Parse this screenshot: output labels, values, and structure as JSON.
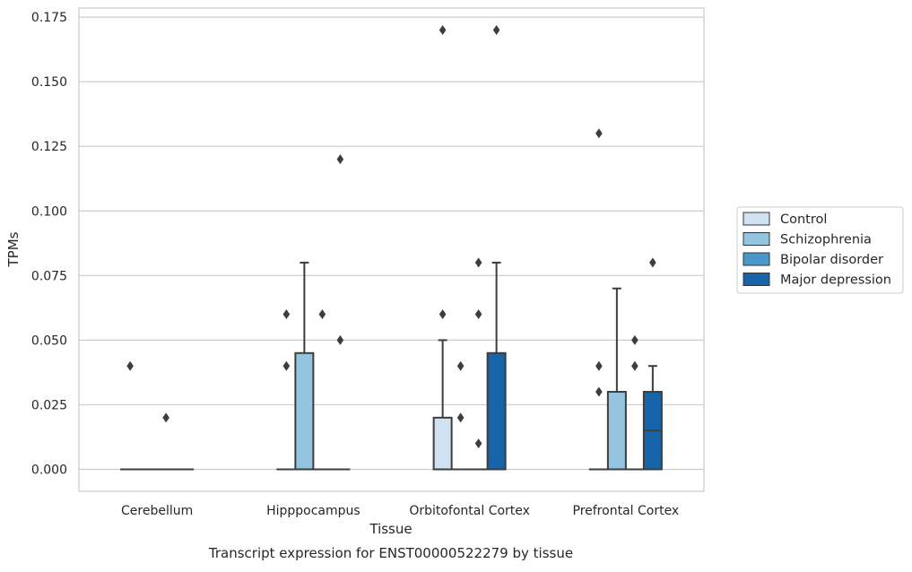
{
  "chart_data": {
    "type": "box",
    "title": "Transcript expression for ENST00000522279 by tissue",
    "xlabel": "Tissue",
    "ylabel": "TPMs",
    "ylim": [
      -0.0085,
      0.1785
    ],
    "yticks": [
      "0.000",
      "0.025",
      "0.050",
      "0.075",
      "0.100",
      "0.125",
      "0.150",
      "0.175"
    ],
    "ytick_values": [
      0,
      0.025,
      0.05,
      0.075,
      0.1,
      0.125,
      0.15,
      0.175
    ],
    "grid": true,
    "legend_position": "right",
    "categories": [
      "Cerebellum",
      "Hipppocampus",
      "Orbitofontal Cortex",
      "Prefrontal Cortex"
    ],
    "series": [
      {
        "name": "Control",
        "color": "#d0e1f2",
        "boxes": [
          {
            "q1": 0,
            "median": 0,
            "q3": 0,
            "whisker_low": 0,
            "whisker_high": 0,
            "outliers": [
              0.04
            ]
          },
          {
            "q1": 0,
            "median": 0,
            "q3": 0,
            "whisker_low": 0,
            "whisker_high": 0,
            "outliers": [
              0.04,
              0.06
            ]
          },
          {
            "q1": 0,
            "median": 0,
            "q3": 0.02,
            "whisker_low": 0,
            "whisker_high": 0.05,
            "outliers": [
              0.06,
              0.17
            ]
          },
          {
            "q1": 0,
            "median": 0,
            "q3": 0,
            "whisker_low": 0,
            "whisker_high": 0,
            "outliers": [
              0.03,
              0.04,
              0.13
            ]
          }
        ]
      },
      {
        "name": "Schizophrenia",
        "color": "#94c4df",
        "boxes": [
          {
            "q1": 0,
            "median": 0,
            "q3": 0,
            "whisker_low": 0,
            "whisker_high": 0,
            "outliers": []
          },
          {
            "q1": 0,
            "median": 0,
            "q3": 0.045,
            "whisker_low": 0,
            "whisker_high": 0.08,
            "outliers": []
          },
          {
            "q1": 0,
            "median": 0,
            "q3": 0,
            "whisker_low": 0,
            "whisker_high": 0,
            "outliers": [
              0.02,
              0.04
            ]
          },
          {
            "q1": 0,
            "median": 0,
            "q3": 0.03,
            "whisker_low": 0,
            "whisker_high": 0.07,
            "outliers": []
          }
        ]
      },
      {
        "name": "Bipolar disorder",
        "color": "#4a98c9",
        "boxes": [
          {
            "q1": 0,
            "median": 0,
            "q3": 0,
            "whisker_low": 0,
            "whisker_high": 0,
            "outliers": [
              0.02
            ]
          },
          {
            "q1": 0,
            "median": 0,
            "q3": 0,
            "whisker_low": 0,
            "whisker_high": 0,
            "outliers": [
              0.06
            ]
          },
          {
            "q1": 0,
            "median": 0,
            "q3": 0,
            "whisker_low": 0,
            "whisker_high": 0,
            "outliers": [
              0.01,
              0.06,
              0.08
            ]
          },
          {
            "q1": 0,
            "median": 0,
            "q3": 0,
            "whisker_low": 0,
            "whisker_high": 0,
            "outliers": [
              0.04,
              0.05
            ]
          }
        ]
      },
      {
        "name": "Major depression",
        "color": "#1764ab",
        "boxes": [
          {
            "q1": 0,
            "median": 0,
            "q3": 0,
            "whisker_low": 0,
            "whisker_high": 0,
            "outliers": []
          },
          {
            "q1": 0,
            "median": 0,
            "q3": 0,
            "whisker_low": 0,
            "whisker_high": 0,
            "outliers": [
              0.05,
              0.12
            ]
          },
          {
            "q1": 0,
            "median": 0,
            "q3": 0.045,
            "whisker_low": 0,
            "whisker_high": 0.08,
            "outliers": [
              0.17
            ]
          },
          {
            "q1": 0,
            "median": 0.015,
            "q3": 0.03,
            "whisker_low": 0,
            "whisker_high": 0.04,
            "outliers": [
              0.08
            ]
          }
        ]
      }
    ]
  }
}
